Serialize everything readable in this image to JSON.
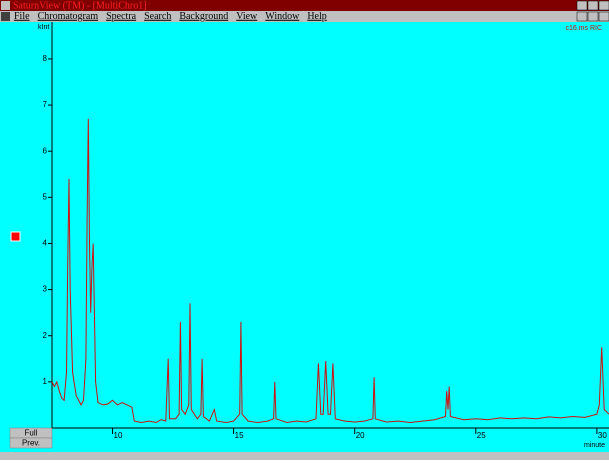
{
  "window": {
    "title": "SaturnView (TM) - [MultiChro1]"
  },
  "menu": [
    "File",
    "Chromatogram",
    "Spectra",
    "Search",
    "Background",
    "View",
    "Window",
    "Help"
  ],
  "buttons": [
    "Full",
    "Prev."
  ],
  "chart_data": {
    "type": "line",
    "y_label": "kInt",
    "x_label": "minute",
    "xlim": [
      7.5,
      30.5
    ],
    "ylim": [
      0,
      8.8
    ],
    "xticks": [
      10,
      15,
      20,
      25,
      30
    ],
    "yticks": [
      1,
      2,
      3,
      4,
      5,
      6,
      7,
      8
    ],
    "x": [
      7.5,
      7.6,
      7.7,
      7.8,
      7.9,
      8.0,
      8.1,
      8.15,
      8.2,
      8.25,
      8.3,
      8.35,
      8.5,
      8.7,
      8.8,
      8.9,
      8.95,
      9.0,
      9.05,
      9.1,
      9.15,
      9.2,
      9.25,
      9.3,
      9.4,
      9.6,
      9.8,
      10.0,
      10.2,
      10.4,
      10.6,
      10.8,
      10.9,
      11.2,
      11.5,
      11.8,
      12.0,
      12.2,
      12.3,
      12.35,
      12.6,
      12.75,
      12.8,
      12.85,
      13.0,
      13.15,
      13.2,
      13.25,
      13.5,
      13.65,
      13.7,
      13.75,
      14.0,
      14.2,
      14.3,
      14.7,
      15.0,
      15.25,
      15.3,
      15.35,
      15.6,
      16.0,
      16.4,
      16.65,
      16.7,
      16.75,
      17.2,
      17.6,
      18.0,
      18.4,
      18.5,
      18.6,
      18.7,
      18.8,
      18.9,
      19.0,
      19.1,
      19.2,
      19.6,
      20.0,
      20.4,
      20.75,
      20.8,
      20.85,
      21.3,
      21.8,
      22.3,
      22.8,
      23.3,
      23.75,
      23.8,
      23.85,
      23.9,
      23.95,
      24.5,
      25.0,
      25.5,
      26.0,
      26.5,
      27.0,
      27.5,
      28.0,
      28.5,
      29.0,
      29.5,
      30.0,
      30.1,
      30.2,
      30.3,
      30.5
    ],
    "series": [
      {
        "name": "c16.ms RIC",
        "color": "#d01010",
        "values": [
          1.0,
          0.9,
          1.0,
          0.8,
          0.65,
          0.6,
          1.2,
          3.5,
          5.4,
          3.0,
          2.1,
          1.2,
          0.7,
          0.5,
          0.6,
          1.5,
          4.5,
          6.7,
          4.0,
          2.5,
          3.5,
          4.0,
          2.5,
          1.0,
          0.55,
          0.5,
          0.52,
          0.6,
          0.5,
          0.55,
          0.5,
          0.45,
          0.15,
          0.12,
          0.15,
          0.12,
          0.18,
          0.15,
          1.5,
          0.2,
          0.2,
          0.3,
          2.3,
          0.4,
          0.3,
          0.5,
          2.7,
          0.4,
          0.2,
          0.3,
          1.5,
          0.25,
          0.15,
          0.4,
          0.15,
          0.12,
          0.15,
          0.3,
          2.3,
          0.3,
          0.15,
          0.12,
          0.15,
          0.2,
          1.0,
          0.2,
          0.12,
          0.15,
          0.13,
          0.2,
          1.4,
          0.3,
          0.3,
          1.45,
          0.3,
          0.3,
          1.4,
          0.2,
          0.15,
          0.13,
          0.15,
          0.2,
          1.1,
          0.2,
          0.13,
          0.15,
          0.12,
          0.15,
          0.18,
          0.25,
          0.8,
          0.4,
          0.9,
          0.25,
          0.18,
          0.2,
          0.18,
          0.22,
          0.2,
          0.22,
          0.2,
          0.24,
          0.22,
          0.25,
          0.23,
          0.3,
          0.5,
          1.75,
          0.4,
          0.3
        ]
      }
    ]
  }
}
